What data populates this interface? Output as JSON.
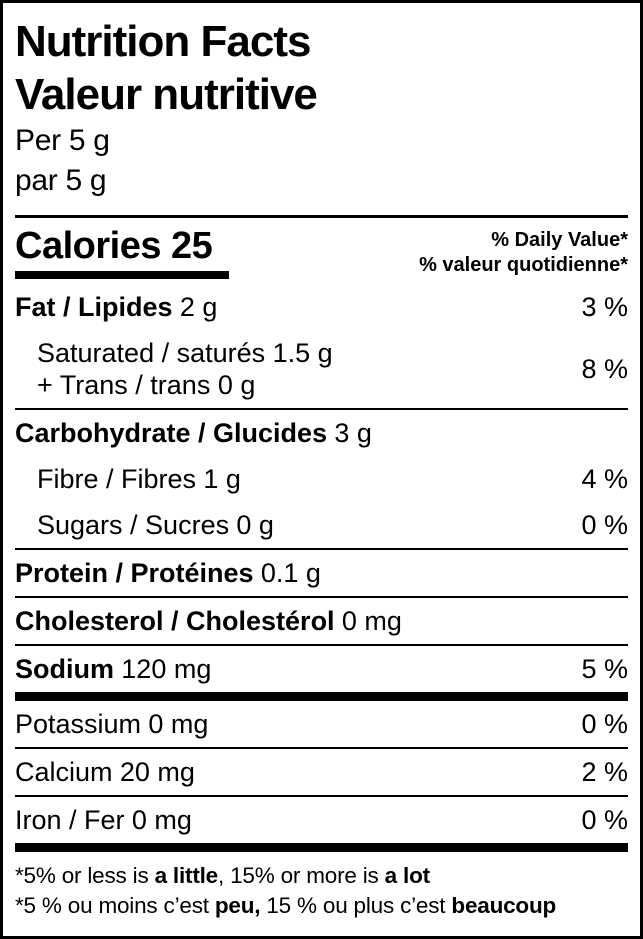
{
  "header": {
    "title_en": "Nutrition Facts",
    "title_fr": "Valeur nutritive",
    "serving_en": "Per 5 g",
    "serving_fr": "par 5 g"
  },
  "calories": {
    "label": "Calories 25",
    "dv_header_en": "% Daily Value*",
    "dv_header_fr": "% valeur quotidienne*"
  },
  "nutrients": {
    "fat": {
      "name": "Fat / Lipides",
      "amount": "2 g",
      "dv": "3 %"
    },
    "saturated": {
      "line1": "Saturated / saturés 1.5 g",
      "line2": "+ Trans / trans 0 g",
      "dv": "8 %"
    },
    "carbohydrate": {
      "name": "Carbohydrate / Glucides",
      "amount": "3 g"
    },
    "fibre": {
      "name": "Fibre / Fibres",
      "amount": "1 g",
      "dv": "4 %"
    },
    "sugars": {
      "name": "Sugars / Sucres",
      "amount": "0 g",
      "dv": "0 %"
    },
    "protein": {
      "name": "Protein / Protéines",
      "amount": "0.1 g"
    },
    "cholesterol": {
      "name": "Cholesterol / Cholestérol",
      "amount": "0 mg"
    },
    "sodium": {
      "name": "Sodium",
      "amount": "120 mg",
      "dv": "5 %"
    },
    "potassium": {
      "name": "Potassium",
      "amount": "0 mg",
      "dv": "0 %"
    },
    "calcium": {
      "name": "Calcium",
      "amount": "20 mg",
      "dv": "2 %"
    },
    "iron": {
      "name": "Iron / Fer",
      "amount": "0 mg",
      "dv": "0 %"
    }
  },
  "footnote": {
    "en_part1": "*5% or less is ",
    "en_bold1": "a little",
    "en_part2": ", 15% or more is ",
    "en_bold2": "a lot",
    "fr_part1": "*5 % ou moins c’est ",
    "fr_bold1": "peu,",
    "fr_part2": " 15 % ou plus c’est ",
    "fr_bold2": "beaucoup"
  },
  "colors": {
    "text": "#000000",
    "background": "#ffffff",
    "border": "#000000"
  }
}
